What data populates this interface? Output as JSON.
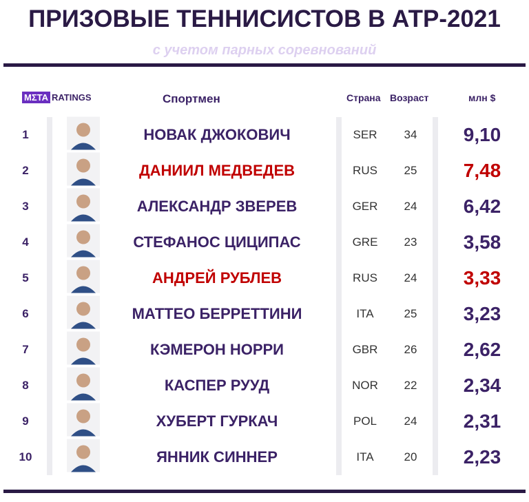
{
  "header": {
    "title": "ПРИЗОВЫЕ ТЕННИСИСТОВ В АТР-2021",
    "subtitle": "с учетом парных соревнований"
  },
  "logo": {
    "mark": "MΣTA",
    "text": "RATINGS"
  },
  "table": {
    "columns": [
      "Спортмен",
      "Страна",
      "Возраст",
      "млн $"
    ],
    "rows": [
      {
        "rank": 1,
        "name": "НОВАК ДЖОКОВИЧ",
        "country": "SER",
        "age": 34,
        "prize": "9,10",
        "color": "#3b2266"
      },
      {
        "rank": 2,
        "name": "ДАНИИЛ МЕДВЕДЕВ",
        "country": "RUS",
        "age": 25,
        "prize": "7,48",
        "color": "#c00000"
      },
      {
        "rank": 3,
        "name": "АЛЕКСАНДР ЗВЕРЕВ",
        "country": "GER",
        "age": 24,
        "prize": "6,42",
        "color": "#3b2266"
      },
      {
        "rank": 4,
        "name": "СТЕФАНОС ЦИЦИПАС",
        "country": "GRE",
        "age": 23,
        "prize": "3,58",
        "color": "#3b2266"
      },
      {
        "rank": 5,
        "name": "АНДРЕЙ РУБЛЕВ",
        "country": "RUS",
        "age": 24,
        "prize": "3,33",
        "color": "#c00000"
      },
      {
        "rank": 6,
        "name": "МАТТЕО БЕРРЕТТИНИ",
        "country": "ITA",
        "age": 25,
        "prize": "3,23",
        "color": "#3b2266"
      },
      {
        "rank": 7,
        "name": "КЭМЕРОН НОРРИ",
        "country": "GBR",
        "age": 26,
        "prize": "2,62",
        "color": "#3b2266"
      },
      {
        "rank": 8,
        "name": "КАСПЕР РУУД",
        "country": "NOR",
        "age": 22,
        "prize": "2,34",
        "color": "#3b2266"
      },
      {
        "rank": 9,
        "name": "ХУБЕРТ ГУРКАЧ",
        "country": "POL",
        "age": 24,
        "prize": "2,31",
        "color": "#3b2266"
      },
      {
        "rank": 10,
        "name": "ЯННИК СИННЕР",
        "country": "ITA",
        "age": 20,
        "prize": "2,23",
        "color": "#3b2266"
      }
    ]
  }
}
